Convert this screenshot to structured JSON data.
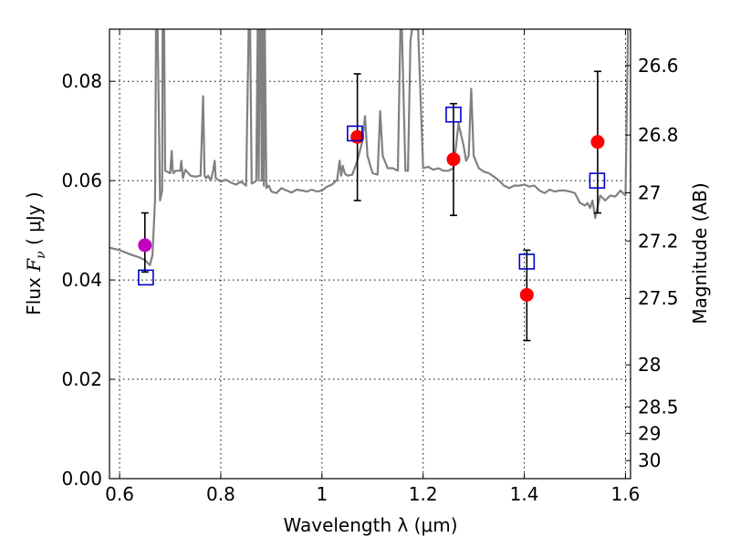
{
  "chart_data": {
    "type": "scatter",
    "title": "",
    "xlabel": "Wavelength  λ (μm)",
    "ylabel_prefix": "Flux  ",
    "ylabel_math": "F",
    "ylabel_sub": "ν",
    "ylabel_suffix": "  (  μJy )",
    "ylabel2": "Magnitude (AB)",
    "xlim": [
      0.58,
      1.61
    ],
    "ylim": [
      0.0,
      0.0905
    ],
    "grid": true,
    "x_ticks": [
      0.6,
      0.8,
      1.0,
      1.2,
      1.4,
      1.6
    ],
    "x_tick_labels": [
      "0.6",
      "0.8",
      "1",
      "1.2",
      "1.4",
      "1.6"
    ],
    "y_ticks": [
      0.0,
      0.02,
      0.04,
      0.06,
      0.08
    ],
    "y_tick_labels": [
      "0.00",
      "0.02",
      "0.04",
      "0.06",
      "0.08"
    ],
    "mag_ticks": [
      26.6,
      26.8,
      27,
      27.2,
      27.5,
      28,
      28.5,
      29,
      30
    ],
    "mag_tick_labels": [
      "26.6",
      "26.8",
      "27",
      "27.2",
      "27.5",
      "28",
      "28.5",
      "29",
      "30"
    ],
    "colors": {
      "model": "#808080",
      "observed": "#ff0000",
      "observed_outline": "#cc0000",
      "first_point": "#bf00bf",
      "model_band": "#0000cc",
      "errorbar": "#000000",
      "grid": "#000000"
    },
    "model_spectrum": {
      "name": "",
      "x": [
        0.58,
        0.6,
        0.62,
        0.64,
        0.65,
        0.655,
        0.66,
        0.665,
        0.67,
        0.672,
        0.675,
        0.68,
        0.684,
        0.685,
        0.688,
        0.69,
        0.7,
        0.703,
        0.705,
        0.707,
        0.71,
        0.72,
        0.722,
        0.725,
        0.73,
        0.74,
        0.75,
        0.76,
        0.765,
        0.768,
        0.771,
        0.775,
        0.78,
        0.785,
        0.788,
        0.79,
        0.8,
        0.81,
        0.82,
        0.83,
        0.84,
        0.85,
        0.855,
        0.858,
        0.861,
        0.865,
        0.87,
        0.873,
        0.875,
        0.877,
        0.879,
        0.881,
        0.883,
        0.885,
        0.887,
        0.89,
        0.895,
        0.9,
        0.91,
        0.92,
        0.93,
        0.94,
        0.95,
        0.96,
        0.97,
        0.98,
        0.99,
        1.0,
        1.01,
        1.02,
        1.03,
        1.035,
        1.038,
        1.041,
        1.045,
        1.05,
        1.06,
        1.07,
        1.08,
        1.085,
        1.09,
        1.1,
        1.11,
        1.115,
        1.12,
        1.13,
        1.14,
        1.15,
        1.155,
        1.158,
        1.165,
        1.17,
        1.175,
        1.178,
        1.181,
        1.185,
        1.19,
        1.2,
        1.21,
        1.22,
        1.23,
        1.24,
        1.25,
        1.26,
        1.27,
        1.28,
        1.285,
        1.29,
        1.295,
        1.3,
        1.31,
        1.32,
        1.33,
        1.34,
        1.35,
        1.36,
        1.37,
        1.38,
        1.39,
        1.4,
        1.41,
        1.42,
        1.43,
        1.44,
        1.45,
        1.46,
        1.47,
        1.48,
        1.49,
        1.5,
        1.51,
        1.52,
        1.525,
        1.53,
        1.535,
        1.54,
        1.55,
        1.56,
        1.57,
        1.58,
        1.59,
        1.595,
        1.6,
        1.605,
        1.61
      ],
      "y": [
        0.0465,
        0.046,
        0.0452,
        0.0445,
        0.044,
        0.0435,
        0.043,
        0.045,
        0.056,
        0.0905,
        0.0905,
        0.056,
        0.058,
        0.0905,
        0.0905,
        0.062,
        0.0615,
        0.066,
        0.062,
        0.0615,
        0.062,
        0.062,
        0.064,
        0.0605,
        0.0622,
        0.061,
        0.0608,
        0.061,
        0.077,
        0.061,
        0.0605,
        0.061,
        0.06,
        0.062,
        0.064,
        0.0605,
        0.0598,
        0.0602,
        0.0596,
        0.0592,
        0.0598,
        0.059,
        0.0905,
        0.0905,
        0.0594,
        0.0596,
        0.06,
        0.0905,
        0.06,
        0.0905,
        0.0905,
        0.06,
        0.0905,
        0.059,
        0.0905,
        0.0585,
        0.059,
        0.0578,
        0.0575,
        0.0585,
        0.058,
        0.0576,
        0.0582,
        0.058,
        0.0578,
        0.0582,
        0.0578,
        0.058,
        0.0588,
        0.0592,
        0.0602,
        0.064,
        0.061,
        0.063,
        0.0615,
        0.061,
        0.0612,
        0.064,
        0.068,
        0.073,
        0.065,
        0.0615,
        0.0612,
        0.074,
        0.065,
        0.0625,
        0.0625,
        0.062,
        0.0905,
        0.0905,
        0.062,
        0.062,
        0.088,
        0.0905,
        0.0905,
        0.0905,
        0.0905,
        0.0625,
        0.0628,
        0.0622,
        0.0625,
        0.062,
        0.062,
        0.0625,
        0.0715,
        0.067,
        0.064,
        0.065,
        0.0785,
        0.065,
        0.0625,
        0.0618,
        0.0615,
        0.0608,
        0.06,
        0.059,
        0.0585,
        0.059,
        0.059,
        0.0592,
        0.0588,
        0.059,
        0.058,
        0.0575,
        0.0582,
        0.0578,
        0.058,
        0.058,
        0.0578,
        0.0575,
        0.0555,
        0.055,
        0.0555,
        0.0545,
        0.056,
        0.0525,
        0.057,
        0.056,
        0.057,
        0.0568,
        0.058,
        0.0575,
        0.057,
        0.0905,
        0.0905
      ]
    },
    "observed": {
      "name": "",
      "x": [
        0.65,
        1.07,
        1.26,
        1.405,
        1.545
      ],
      "y": [
        0.047,
        0.0688,
        0.0643,
        0.037,
        0.0678
      ],
      "yerr_low": [
        0.0416,
        0.056,
        0.053,
        0.0278,
        0.0535
      ],
      "yerr_high": [
        0.0535,
        0.0815,
        0.0755,
        0.046,
        0.082
      ]
    },
    "model_bands": {
      "name": "",
      "x": [
        0.652,
        1.065,
        1.26,
        1.405,
        1.544
      ],
      "y": [
        0.0405,
        0.0695,
        0.0733,
        0.0437,
        0.06
      ]
    }
  }
}
